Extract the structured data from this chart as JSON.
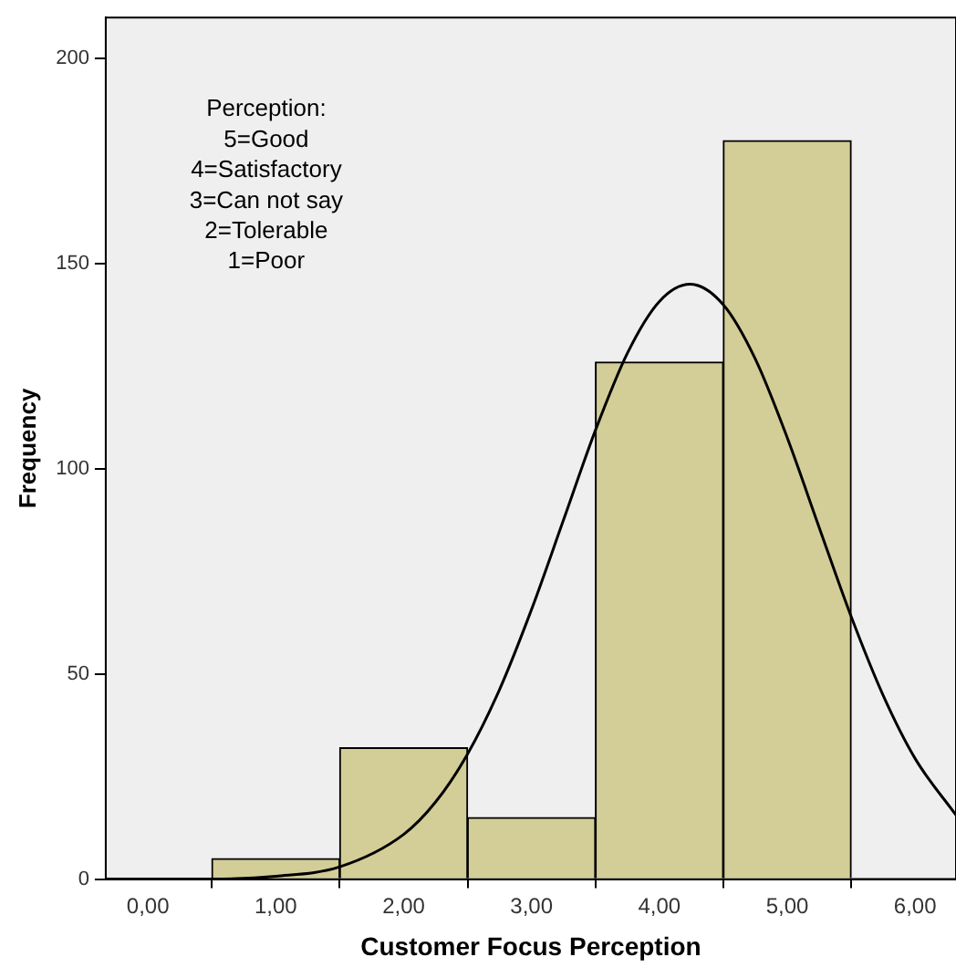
{
  "chart_data": {
    "type": "histogram",
    "xlabel": "Customer Focus Perception",
    "ylabel": "Frequency",
    "bins": [
      0.5,
      1.5,
      2.5,
      3.5,
      4.5,
      5.5
    ],
    "values": [
      5,
      32,
      15,
      126,
      180
    ],
    "color": "#d3ce97",
    "series": [
      {
        "type": "line",
        "color": "#000000",
        "x": [
          -0.33,
          0,
          0.5,
          1,
          1.5,
          2,
          2.25,
          2.5,
          2.75,
          3,
          3.25,
          3.5,
          3.75,
          4,
          4.24,
          4.5,
          4.75,
          5,
          5.25,
          5.5,
          5.75,
          6,
          6.32
        ],
        "values": [
          0,
          0,
          0,
          0.7,
          3,
          10.9,
          18.8,
          30.5,
          46.2,
          65.7,
          87.5,
          109.4,
          128.2,
          140.8,
          145,
          140,
          126.8,
          107.6,
          85.7,
          64,
          44.8,
          29.4,
          15.6
        ]
      }
    ],
    "xlim": [
      -0.33,
      6.32
    ],
    "xticks": [
      {
        "value": 0,
        "label": "0,00"
      },
      {
        "value": 1,
        "label": "1,00"
      },
      {
        "value": 2,
        "label": "2,00"
      },
      {
        "value": 3,
        "label": "3,00"
      },
      {
        "value": 4,
        "label": "4,00"
      },
      {
        "value": 5,
        "label": "5,00"
      },
      {
        "value": 6,
        "label": "6,00"
      }
    ],
    "ylim": [
      0,
      210
    ],
    "yticks": [
      0,
      50,
      100,
      150,
      200
    ],
    "annotations": [
      "Perception:\n5=Good\n4=Satisfactory\n3=Can not say\n2=Tolerable\n1=Poor"
    ],
    "grid": false,
    "legend": false,
    "marker": "none"
  }
}
